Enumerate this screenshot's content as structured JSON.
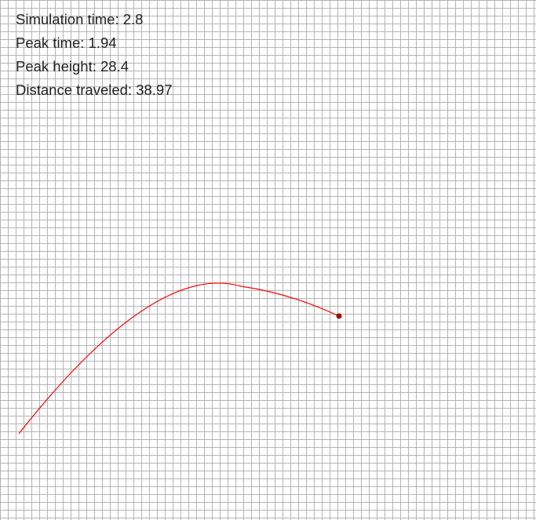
{
  "stats": {
    "simulation_time": "Simulation time: 2.8",
    "peak_time": "Peak time: 1.94",
    "peak_height": "Peak height: 28.4",
    "distance_traveled": "Distance traveled: 38.97"
  },
  "colors": {
    "grid_line": "#b4b4b4",
    "trajectory": "#ff0000",
    "projectile": "#b00000",
    "text": "#222222"
  }
}
